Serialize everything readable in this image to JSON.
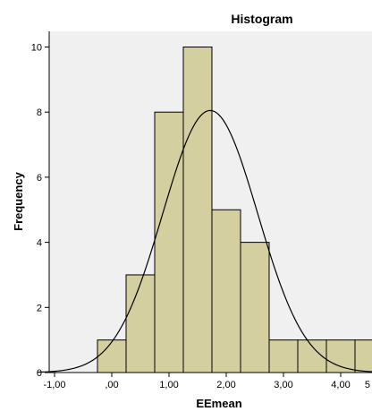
{
  "chart_data": {
    "type": "bar",
    "title": "Histogram",
    "xlabel": "EEmean",
    "ylabel": "Frequency",
    "xlim": [
      -1.35,
      5.2
    ],
    "ylim": [
      0,
      11
    ],
    "x_ticks": [
      -1,
      0,
      1,
      2,
      3,
      4,
      5
    ],
    "x_tick_labels": [
      "-1,00",
      ",00",
      "1,00",
      "2,00",
      "3,00",
      "4,00",
      "5"
    ],
    "y_ticks": [
      0,
      2,
      4,
      6,
      8,
      10
    ],
    "y_tick_labels": [
      "0",
      "2",
      "4",
      "6",
      "8",
      "10"
    ],
    "bins": [
      {
        "x0": -0.25,
        "x1": 0.25,
        "count": 1
      },
      {
        "x0": 0.25,
        "x1": 0.75,
        "count": 3
      },
      {
        "x0": 0.75,
        "x1": 1.25,
        "count": 8
      },
      {
        "x0": 1.25,
        "x1": 1.75,
        "count": 10
      },
      {
        "x0": 1.75,
        "x1": 2.25,
        "count": 5
      },
      {
        "x0": 2.25,
        "x1": 2.75,
        "count": 4
      },
      {
        "x0": 2.75,
        "x1": 3.25,
        "count": 1
      },
      {
        "x0": 3.25,
        "x1": 3.75,
        "count": 1
      },
      {
        "x0": 3.75,
        "x1": 4.25,
        "count": 1
      },
      {
        "x0": 4.25,
        "x1": 4.75,
        "count": 1
      }
    ],
    "normal_curve": {
      "mean": 1.72,
      "sd": 0.83,
      "peak": 8.05
    },
    "grid": false,
    "colors": {
      "bar_fill": "#d3cf9f",
      "bar_stroke": "#000000",
      "plot_background": "#f0f0f0",
      "curve": "#000000"
    }
  }
}
